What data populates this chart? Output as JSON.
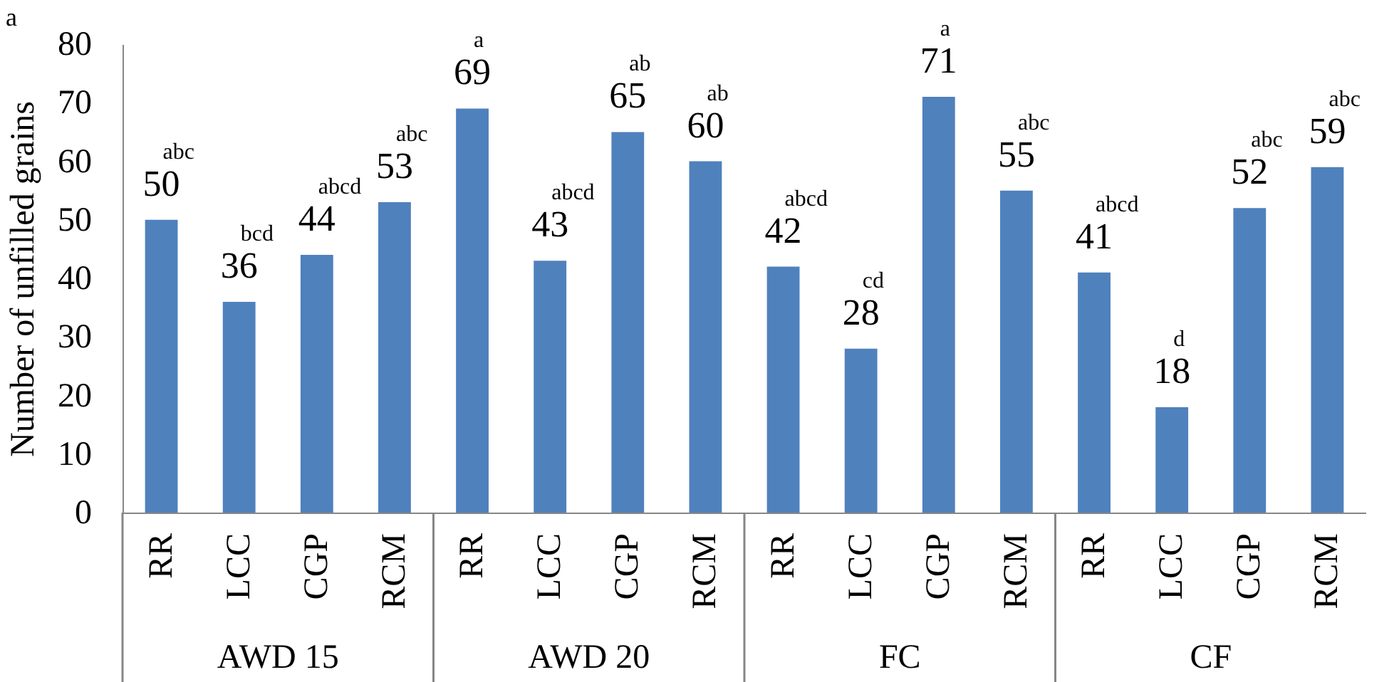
{
  "chart_data": {
    "type": "bar",
    "title": "a",
    "ylabel": "Number of unfilled grains",
    "categories": [
      "RR",
      "LCC",
      "CGP",
      "RCM",
      "RR",
      "LCC",
      "CGP",
      "RCM",
      "RR",
      "LCC",
      "CGP",
      "RCM",
      "RR",
      "LCC",
      "CGP",
      "RCM"
    ],
    "values": [
      50,
      36,
      44,
      53,
      69,
      43,
      65,
      60,
      42,
      28,
      71,
      55,
      41,
      18,
      52,
      59
    ],
    "data_labels": true,
    "color": "#4f81bd",
    "annotations": [
      "abc",
      "bcd",
      "abcd",
      "abc",
      "a",
      "abcd",
      "ab",
      "ab",
      "abcd",
      "cd",
      "a",
      "abc",
      "abcd",
      "d",
      "abc",
      "abc",
      "AWD 15",
      "AWD 20",
      "FC",
      "CF"
    ],
    "ylim": [
      0,
      80
    ],
    "yticks": [
      0,
      10,
      20,
      30,
      40,
      50,
      60,
      70,
      80
    ]
  }
}
